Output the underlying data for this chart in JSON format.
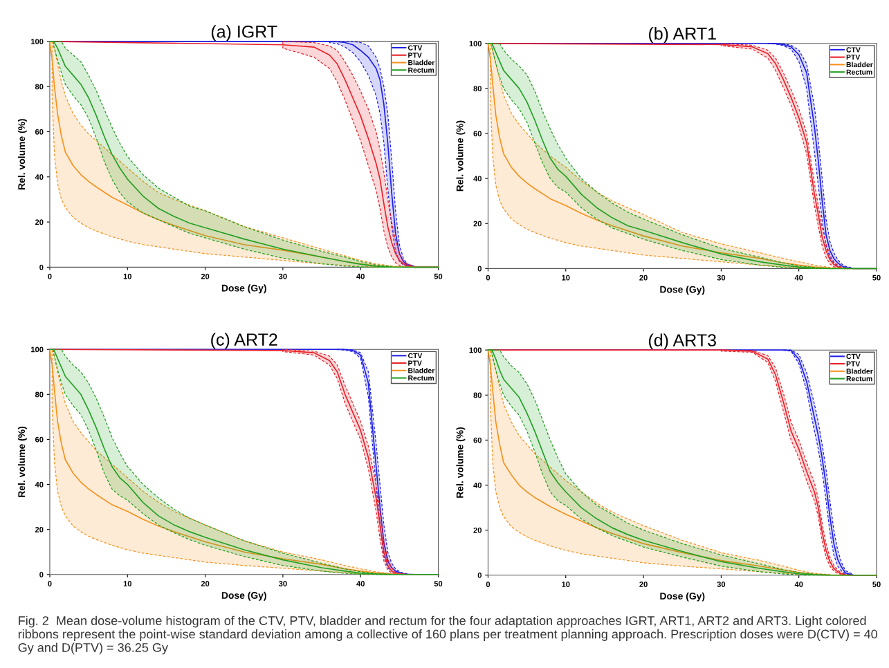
{
  "chart_data": [
    {
      "type": "line",
      "title": "(a) IGRT",
      "xlabel": "Dose (Gy)",
      "ylabel": "Rel. volume (%)",
      "xlim": [
        0,
        50
      ],
      "ylim": [
        0,
        100
      ],
      "xticks": [
        0,
        10,
        20,
        30,
        40,
        50
      ],
      "yticks": [
        0,
        20,
        40,
        60,
        80,
        100
      ],
      "grid": false,
      "legend": "top right",
      "line_style": "solid",
      "marker": "none",
      "series": [
        {
          "name": "CTV",
          "color": "#1f1fe6",
          "x": [
            0,
            30,
            34,
            36,
            37,
            38,
            39,
            40,
            41,
            42,
            42.5,
            43,
            43.5,
            44,
            44.5,
            45,
            45.5,
            46,
            47,
            50
          ],
          "values": [
            100,
            100,
            100,
            100,
            99.9,
            99.5,
            98.5,
            96,
            93,
            88,
            83,
            72,
            55,
            33,
            15,
            6,
            2.5,
            1,
            0,
            0
          ],
          "upper": [
            null,
            null,
            null,
            100,
            100,
            100,
            100,
            99.5,
            98,
            93,
            88,
            80,
            68,
            48,
            25,
            10,
            4,
            1.5,
            0.3,
            null
          ],
          "lower": [
            null,
            null,
            null,
            99.5,
            99,
            97.5,
            95,
            91,
            85,
            76,
            68,
            55,
            35,
            18,
            7,
            2.5,
            1,
            0.5,
            0,
            null
          ]
        },
        {
          "name": "PTV",
          "color": "#e8222a",
          "x": [
            0,
            30,
            34,
            36,
            37,
            38,
            39,
            40,
            41,
            42,
            42.5,
            43,
            43.5,
            44,
            44.5,
            45,
            45.5,
            46,
            47,
            50
          ],
          "values": [
            100,
            98.5,
            97.5,
            94,
            90,
            83,
            75,
            67,
            57,
            46,
            39,
            28,
            18,
            11,
            6,
            3,
            1.5,
            0.7,
            0,
            0
          ],
          "upper": [
            null,
            100,
            99.5,
            98,
            96,
            91,
            85,
            78,
            70,
            60,
            52,
            42,
            30,
            20,
            12,
            6,
            3,
            1.5,
            0.3,
            null
          ],
          "lower": [
            null,
            97,
            93,
            88,
            82,
            74,
            65,
            56,
            45,
            34,
            26,
            16,
            9,
            4.5,
            2,
            0.8,
            0.3,
            0,
            0,
            null
          ]
        },
        {
          "name": "Bladder",
          "color": "#f5921e",
          "x": [
            0,
            0.3,
            0.6,
            1,
            1.5,
            2,
            3,
            4,
            5,
            6,
            8,
            10,
            12,
            14,
            16,
            20,
            25,
            30,
            35,
            38,
            40,
            42,
            44,
            46,
            50
          ],
          "values": [
            100,
            92,
            80,
            68,
            58,
            51,
            45,
            41,
            38,
            35.5,
            31,
            27.5,
            24,
            21,
            18.5,
            14,
            10,
            7.5,
            4.5,
            2.5,
            1.5,
            0.6,
            0.2,
            0,
            0
          ],
          "upper": [
            null,
            100,
            97,
            90,
            82,
            76,
            68,
            63,
            59,
            56,
            50,
            44,
            38,
            33,
            30,
            25,
            18,
            13,
            8,
            5,
            3,
            1.5,
            0.5,
            0.1,
            null
          ],
          "lower": [
            null,
            75,
            50,
            37,
            30,
            26.5,
            22,
            19.5,
            17.5,
            16,
            13.5,
            11.5,
            10,
            9,
            8,
            6,
            4.5,
            3,
            1.5,
            0.8,
            0.3,
            0.1,
            0,
            0,
            null
          ]
        },
        {
          "name": "Rectum",
          "color": "#22a022",
          "x": [
            0,
            0.5,
            1,
            1.5,
            2,
            3,
            4,
            5,
            6,
            7,
            8,
            9,
            10,
            12,
            14,
            16,
            18,
            20,
            25,
            30,
            35,
            38,
            40,
            42,
            44,
            46,
            50
          ],
          "values": [
            100,
            100,
            97,
            93,
            89,
            85,
            81,
            75,
            67,
            58,
            50,
            44,
            39,
            31.5,
            26,
            22.5,
            19.5,
            17.5,
            12.5,
            8,
            4.5,
            2.5,
            1.3,
            0.4,
            0.1,
            0,
            0
          ],
          "upper": [
            null,
            100,
            100,
            100,
            97,
            94,
            91,
            85,
            78,
            70,
            62,
            55,
            49,
            41,
            35,
            31,
            27,
            25,
            18,
            12,
            7,
            4.5,
            2.5,
            1,
            0.3,
            null,
            null
          ],
          "lower": [
            null,
            98,
            92,
            86,
            81,
            76,
            72,
            66,
            57,
            47,
            39,
            33,
            29,
            24,
            21,
            18,
            15,
            13,
            8,
            4,
            1.5,
            0.5,
            0.1,
            0,
            0,
            null,
            null
          ]
        }
      ]
    },
    {
      "type": "line",
      "title": "(b) ART1",
      "xlabel": "Dose (Gy)",
      "ylabel": "Rel. volume (%)",
      "xlim": [
        0,
        50
      ],
      "ylim": [
        0,
        100
      ],
      "xticks": [
        0,
        10,
        20,
        30,
        40,
        50
      ],
      "yticks": [
        0,
        20,
        40,
        60,
        80,
        100
      ],
      "grid": false,
      "legend": "top right",
      "line_style": "solid",
      "marker": "none",
      "series": [
        {
          "name": "CTV",
          "color": "#1f1fe6",
          "x": [
            0,
            30,
            34,
            36,
            37,
            38,
            39,
            40,
            41,
            42,
            42.5,
            43,
            43.5,
            44,
            44.5,
            45,
            45.5,
            46,
            47,
            50
          ],
          "values": [
            100,
            100,
            100,
            100,
            99.9,
            99.5,
            98.5,
            95,
            87,
            63,
            48,
            30,
            15,
            8,
            4.5,
            2.5,
            1.2,
            0.5,
            0,
            0
          ],
          "upper": [
            null,
            null,
            null,
            100,
            100,
            99.8,
            99.2,
            97,
            91,
            72,
            57,
            40,
            22,
            12,
            7,
            4,
            2,
            1,
            0.2,
            null
          ],
          "lower": [
            null,
            null,
            null,
            99.9,
            99.7,
            99,
            97.5,
            92,
            80,
            52,
            37,
            21,
            10,
            5,
            2.5,
            1.2,
            0.5,
            0.2,
            0,
            null
          ]
        },
        {
          "name": "PTV",
          "color": "#e8222a",
          "x": [
            0,
            30,
            34,
            36,
            37,
            38,
            39,
            40,
            41,
            42,
            42.5,
            43,
            43.5,
            44,
            44.5,
            45,
            45.5,
            46
          ],
          "values": [
            100,
            99.5,
            98.5,
            95.5,
            91,
            84,
            76,
            67,
            56,
            33,
            24,
            14,
            8,
            4,
            1.8,
            0.8,
            0.3,
            0.1
          ],
          "upper": [
            null,
            100,
            99.2,
            97,
            93.5,
            87,
            79.5,
            71,
            60,
            38,
            28,
            18,
            11,
            6,
            3,
            1.5,
            0.6,
            0.2
          ],
          "lower": [
            null,
            99,
            97.5,
            93.5,
            88,
            80.5,
            72.5,
            63,
            51,
            28,
            19,
            10,
            5,
            2,
            0.8,
            0.3,
            0.1,
            0
          ]
        },
        {
          "name": "Bladder",
          "color": "#f5921e",
          "x": [
            0,
            0.3,
            0.6,
            1,
            1.5,
            2,
            3,
            4,
            5,
            6,
            8,
            10,
            12,
            14,
            16,
            20,
            25,
            30,
            35,
            38,
            40,
            42,
            44,
            46,
            50
          ],
          "values": [
            100,
            93,
            82,
            68,
            58,
            51,
            45,
            41,
            38,
            35.5,
            31,
            28,
            24.5,
            21.5,
            19,
            14.5,
            10,
            7,
            4.5,
            2.5,
            1.5,
            0.7,
            0.2,
            0,
            0
          ],
          "upper": [
            null,
            100,
            97,
            91,
            84,
            77,
            69,
            64,
            60,
            56,
            50,
            45,
            39,
            34,
            30,
            24,
            16,
            11,
            7,
            4.5,
            3,
            1.5,
            0.5,
            0.1,
            null
          ],
          "lower": [
            null,
            75,
            50,
            37,
            30,
            26.5,
            22,
            19.5,
            17.5,
            16,
            13.5,
            11.5,
            10,
            9,
            8,
            6,
            4.5,
            3,
            1.5,
            0.8,
            0.3,
            0.1,
            0,
            0,
            null
          ]
        },
        {
          "name": "Rectum",
          "color": "#22a022",
          "x": [
            0,
            0.5,
            1,
            1.5,
            2,
            3,
            4,
            5,
            6,
            7,
            8,
            9,
            10,
            12,
            14,
            16,
            18,
            20,
            25,
            30,
            35,
            38,
            40,
            42,
            44,
            46,
            50
          ],
          "values": [
            100,
            100,
            96,
            92,
            88,
            84,
            80,
            74,
            66,
            57,
            49,
            44,
            41,
            33,
            27,
            22.5,
            19,
            17,
            11.5,
            6.5,
            3,
            1.5,
            0.7,
            0.2,
            0,
            0,
            0
          ],
          "upper": [
            null,
            100,
            100,
            100,
            97,
            93,
            90,
            86,
            79,
            70,
            62,
            55,
            49,
            40,
            34,
            29,
            25,
            22,
            15,
            9,
            5,
            2.5,
            1.2,
            0.4,
            0.1,
            null,
            null
          ],
          "lower": [
            null,
            98,
            91,
            85,
            80,
            75,
            71,
            65,
            56,
            47,
            40,
            36,
            34,
            27,
            22,
            18,
            15.5,
            13,
            8,
            4,
            1.5,
            0.5,
            0.1,
            0,
            0,
            null,
            null
          ]
        }
      ]
    },
    {
      "type": "line",
      "title": "(c) ART2",
      "xlabel": "Dose (Gy)",
      "ylabel": "Rel. volume (%)",
      "xlim": [
        0,
        50
      ],
      "ylim": [
        0,
        100
      ],
      "xticks": [
        0,
        10,
        20,
        30,
        40,
        50
      ],
      "yticks": [
        0,
        20,
        40,
        60,
        80,
        100
      ],
      "grid": false,
      "legend": "top right",
      "line_style": "solid",
      "marker": "none",
      "series": [
        {
          "name": "CTV",
          "color": "#1f1fe6",
          "x": [
            0,
            30,
            34,
            36,
            37,
            38,
            39,
            40,
            41,
            42,
            42.5,
            43,
            43.5,
            44,
            44.5,
            45,
            45.5,
            46,
            47,
            50
          ],
          "values": [
            100,
            100,
            100,
            100,
            100,
            99.9,
            99.5,
            97.5,
            85,
            48,
            30,
            14,
            6,
            3,
            1.5,
            0.8,
            0.4,
            0.1,
            0,
            0
          ],
          "upper": [
            null,
            null,
            null,
            null,
            100,
            100,
            99.8,
            98.5,
            90,
            58,
            40,
            22,
            10,
            5,
            2.5,
            1.3,
            0.7,
            0.3,
            null,
            null
          ],
          "lower": [
            null,
            null,
            null,
            null,
            99.9,
            99.7,
            99,
            96,
            79,
            39,
            22,
            8,
            3,
            1.5,
            0.7,
            0.3,
            0.1,
            0,
            null,
            null
          ]
        },
        {
          "name": "PTV",
          "color": "#e8222a",
          "x": [
            0,
            30,
            34,
            36,
            37,
            38,
            39,
            40,
            41,
            42,
            42.5,
            43,
            43.5,
            44,
            44.5,
            45,
            45.5,
            46
          ],
          "values": [
            100,
            99.5,
            98.5,
            95,
            90,
            80,
            72,
            64,
            52,
            34,
            22,
            10,
            4,
            1.5,
            0.5,
            0.2,
            0.1,
            null
          ],
          "upper": [
            null,
            100,
            99.2,
            97,
            93,
            84,
            76,
            68,
            57,
            40,
            28,
            15,
            7,
            3,
            1,
            0.4,
            0.2,
            0.1
          ],
          "lower": [
            null,
            99,
            97.5,
            93,
            87,
            76,
            68,
            60,
            47,
            28,
            16,
            6,
            2,
            0.7,
            0.2,
            0.1,
            0,
            0
          ]
        },
        {
          "name": "Bladder",
          "color": "#f5921e",
          "x": [
            0,
            0.3,
            0.6,
            1,
            1.5,
            2,
            3,
            4,
            5,
            6,
            8,
            10,
            12,
            14,
            16,
            20,
            25,
            30,
            35,
            38,
            40,
            42,
            44,
            46,
            50
          ],
          "values": [
            100,
            93,
            82,
            68,
            58,
            51,
            45,
            41,
            38,
            35.5,
            31,
            28,
            24.5,
            21.5,
            19,
            14.5,
            10,
            7,
            4.5,
            2.5,
            1.5,
            0.7,
            0.2,
            0,
            0
          ],
          "upper": [
            null,
            100,
            97,
            90,
            83,
            76,
            68,
            63,
            59,
            55,
            49,
            43,
            37,
            32,
            28,
            22,
            15,
            10,
            6.5,
            4,
            2.5,
            1.2,
            0.3,
            null,
            null
          ],
          "lower": [
            null,
            75,
            50,
            37,
            30,
            26,
            21.5,
            19,
            17,
            15.5,
            13,
            11,
            9.5,
            8.5,
            7.5,
            5.5,
            4,
            2.8,
            1.5,
            0.8,
            0.3,
            0.1,
            0,
            null,
            null
          ]
        },
        {
          "name": "Rectum",
          "color": "#22a022",
          "x": [
            0,
            0.5,
            1,
            1.5,
            2,
            3,
            4,
            5,
            6,
            7,
            8,
            9,
            10,
            12,
            14,
            16,
            18,
            20,
            25,
            30,
            35,
            38,
            40,
            42,
            44,
            46,
            50
          ],
          "values": [
            100,
            100,
            96,
            92,
            88,
            84,
            80,
            73,
            65,
            56,
            48,
            43,
            40,
            32,
            26,
            22,
            19,
            16.5,
            11,
            6.5,
            3,
            1.5,
            0.6,
            0.2,
            0,
            0,
            0
          ],
          "upper": [
            null,
            100,
            100,
            100,
            97,
            93,
            90,
            85,
            78,
            70,
            61,
            54,
            48,
            40,
            34,
            29,
            25,
            22,
            15,
            9.5,
            5,
            2.5,
            1.2,
            0.4,
            0.1,
            null,
            null
          ],
          "lower": [
            null,
            98,
            91,
            85,
            80,
            75,
            71,
            64,
            55,
            45,
            38,
            35,
            33,
            27,
            22,
            18.5,
            15.5,
            13,
            8,
            4,
            1.5,
            0.5,
            0.1,
            0,
            0,
            null,
            null
          ]
        }
      ]
    },
    {
      "type": "line",
      "title": "(d) ART3",
      "xlabel": "Dose (Gy)",
      "ylabel": "Rel. volume (%)",
      "xlim": [
        0,
        50
      ],
      "ylim": [
        0,
        100
      ],
      "xticks": [
        0,
        10,
        20,
        30,
        40,
        50
      ],
      "yticks": [
        0,
        20,
        40,
        60,
        80,
        100
      ],
      "grid": false,
      "legend": "top right",
      "line_style": "solid",
      "marker": "none",
      "annotations": [
        "Fig. 2  Mean dose-volume histogram of the CTV, PTV, bladder and rectum for the four adaptation approaches IGRT, ART1, ART2 and ART3. Light colored ribbons represent the point-wise standard deviation among a collective of 160 plans per treatment planning approach. Prescription doses were D(CTV) = 40 Gy and D(PTV) = 36.25 Gy"
      ],
      "series": [
        {
          "name": "CTV",
          "color": "#1f1fe6",
          "x": [
            0,
            30,
            34,
            36,
            37,
            38,
            39,
            40,
            41,
            42,
            42.5,
            43,
            43.5,
            44,
            44.5,
            45,
            45.5,
            46,
            47,
            50
          ],
          "values": [
            100,
            100,
            100,
            100,
            100,
            100,
            99.8,
            96,
            86,
            70,
            62,
            52,
            40,
            26,
            14,
            7,
            3.5,
            1,
            0,
            0
          ],
          "upper": [
            null,
            null,
            null,
            null,
            null,
            100,
            100,
            98,
            90,
            76,
            68,
            58,
            47,
            33,
            20,
            11,
            5.5,
            2,
            0.3,
            null
          ],
          "lower": [
            null,
            null,
            null,
            null,
            null,
            99.9,
            99.5,
            94,
            82,
            64,
            56,
            46,
            33,
            19,
            9,
            4,
            1.8,
            0.5,
            0,
            null
          ]
        },
        {
          "name": "PTV",
          "color": "#e8222a",
          "x": [
            0,
            30,
            34,
            36,
            37,
            38,
            39,
            40,
            41,
            42,
            42.5,
            43,
            43.5,
            44,
            44.5,
            45,
            45.5,
            46,
            47,
            50
          ],
          "values": [
            100,
            100,
            99.5,
            96,
            89,
            77,
            64,
            56,
            46,
            37,
            30,
            19,
            11,
            6,
            3,
            1.5,
            0.6,
            0.2,
            0,
            0
          ],
          "upper": [
            null,
            100,
            99.8,
            97.5,
            92,
            81,
            68,
            60,
            50,
            41,
            34,
            23,
            14,
            8,
            4.5,
            2.3,
            1,
            0.4,
            null,
            null
          ],
          "lower": [
            null,
            99.5,
            99,
            94.5,
            86,
            73,
            60,
            52,
            42,
            33,
            26,
            15,
            8,
            4,
            1.8,
            0.8,
            0.3,
            0.1,
            null,
            null
          ]
        },
        {
          "name": "Bladder",
          "color": "#f5921e",
          "x": [
            0,
            0.3,
            0.6,
            1,
            1.5,
            2,
            3,
            4,
            5,
            6,
            8,
            10,
            12,
            14,
            16,
            20,
            25,
            30,
            35,
            38,
            40,
            42,
            44,
            46,
            50
          ],
          "values": [
            100,
            93,
            82,
            68,
            58,
            50,
            44.5,
            40,
            37,
            34.5,
            30.5,
            27,
            24,
            21,
            18.5,
            14,
            10,
            6.5,
            4,
            2.3,
            1.2,
            0.4,
            0.1,
            0,
            0
          ],
          "upper": [
            null,
            100,
            97,
            91,
            83,
            76,
            68,
            62,
            58,
            54,
            48,
            42,
            37,
            32,
            28,
            22,
            15.5,
            10,
            6.5,
            4,
            2.2,
            0.8,
            0.2,
            null,
            null
          ],
          "lower": [
            null,
            75,
            50,
            37,
            30,
            26,
            21.5,
            19,
            17,
            15.5,
            13,
            11,
            9.5,
            8.5,
            7.5,
            5.5,
            4,
            2.8,
            1.5,
            0.8,
            0.3,
            0.1,
            0,
            null,
            null
          ]
        },
        {
          "name": "Rectum",
          "color": "#22a022",
          "x": [
            0,
            0.5,
            1,
            1.5,
            2,
            3,
            4,
            5,
            6,
            7,
            8,
            9,
            10,
            12,
            14,
            16,
            18,
            20,
            25,
            30,
            35,
            38,
            40,
            42,
            44,
            46,
            50
          ],
          "values": [
            100,
            100,
            96,
            91,
            87,
            83,
            79,
            72,
            64,
            55,
            46,
            41,
            37,
            30,
            25,
            21,
            18,
            15.5,
            10.5,
            6,
            3,
            1.5,
            0.6,
            0.2,
            0,
            0,
            0
          ],
          "upper": [
            null,
            100,
            100,
            100,
            97,
            93,
            90,
            85,
            78,
            69,
            60,
            52,
            45,
            37,
            31,
            27,
            23,
            20,
            14,
            9,
            5,
            2.5,
            1.2,
            0.4,
            0.1,
            null,
            null
          ],
          "lower": [
            null,
            98,
            91,
            85,
            80,
            75,
            71,
            64,
            55,
            45,
            37,
            33,
            31,
            25,
            21,
            17.5,
            15,
            12.5,
            8,
            4,
            1.5,
            0.5,
            0.1,
            0,
            0,
            null,
            null
          ]
        }
      ]
    }
  ]
}
